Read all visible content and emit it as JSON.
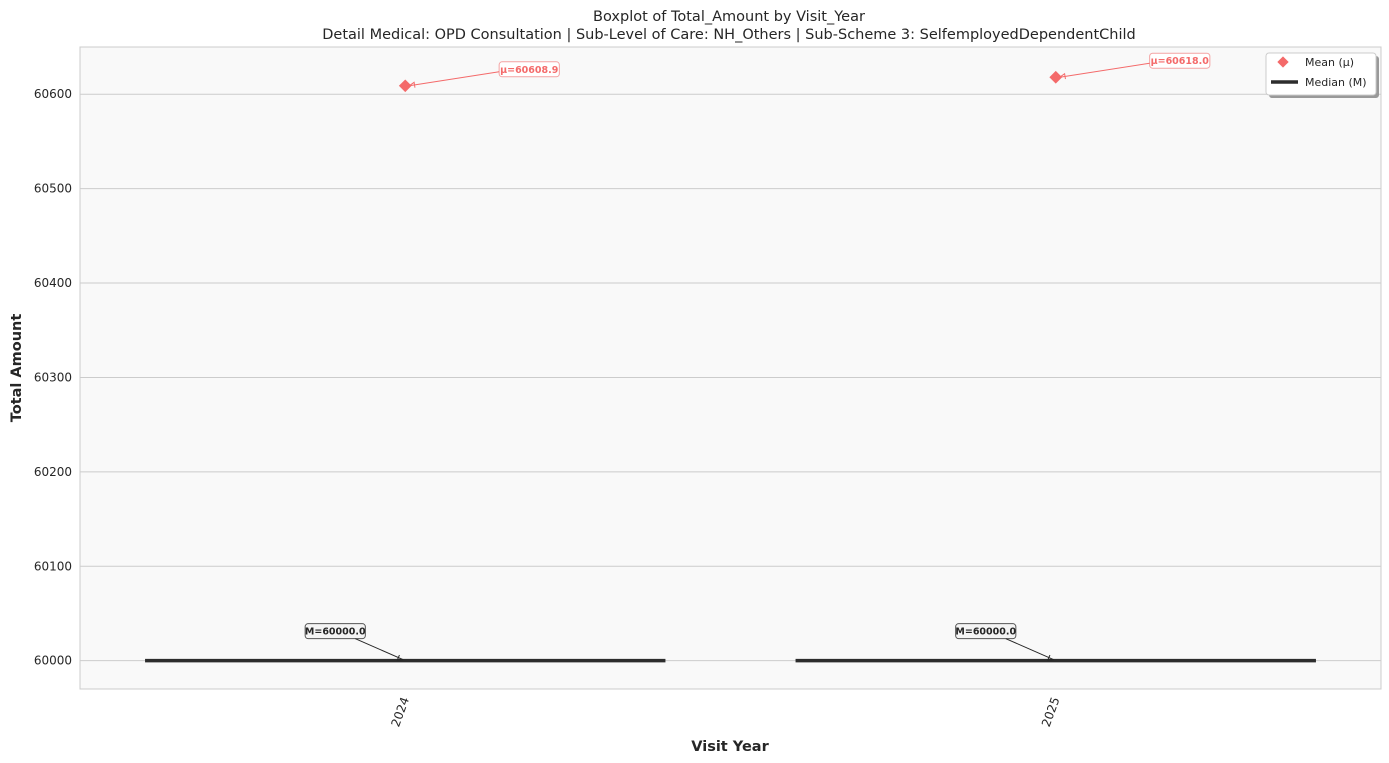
{
  "chart_data": {
    "type": "box",
    "title": "Boxplot of Total_Amount by Visit_Year",
    "subtitle": "Detail Medical: OPD Consultation | Sub-Level of Care: NH_Others | Sub-Scheme 3: SelfemployedDependentChild",
    "xlabel": "Visit Year",
    "ylabel": "Total Amount",
    "categories": [
      "2024",
      "2025"
    ],
    "ylim": [
      59970,
      60650
    ],
    "yticks": [
      60000,
      60100,
      60200,
      60300,
      60400,
      60500,
      60600
    ],
    "grid": true,
    "legend_position": "top-right",
    "series": [
      {
        "name": "Median (M)",
        "values": [
          60000.0,
          60000.0
        ],
        "labels": [
          "M=60000.0",
          "M=60000.0"
        ],
        "color": "#2d2d2d"
      },
      {
        "name": "Mean (μ)",
        "values": [
          60608.9,
          60618.0
        ],
        "labels": [
          "μ=60608.9",
          "μ=60618.0"
        ],
        "color": "#f46a6a"
      }
    ]
  },
  "colors": {
    "plot_bg": "#f9f9f9",
    "grid": "#cccccc",
    "mean": "#f46a6a",
    "median": "#2d2d2d",
    "text": "#262626"
  }
}
